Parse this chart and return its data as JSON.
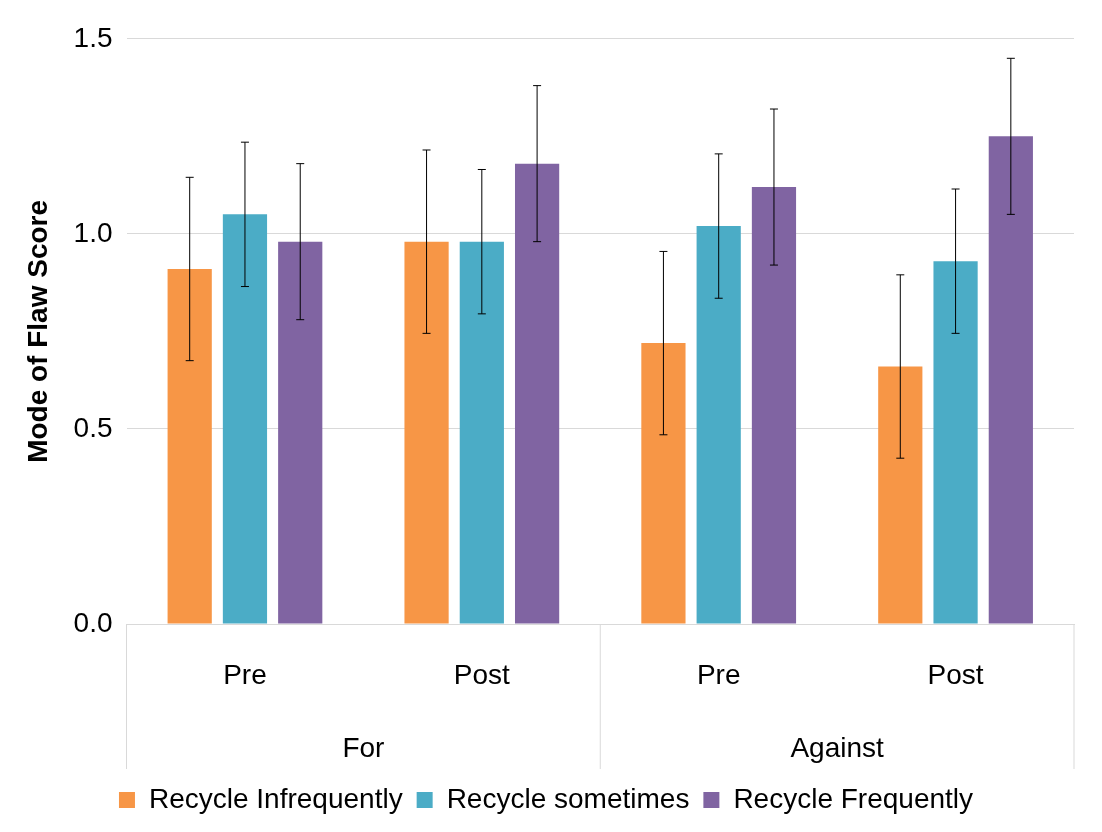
{
  "chart_data": {
    "type": "bar",
    "ylabel": "Mode of Flaw Score",
    "categories": [
      "Pre",
      "Post",
      "Pre",
      "Post"
    ],
    "annotations": [
      "For",
      "Against"
    ],
    "series": [
      {
        "name": "Recycle Infrequently",
        "color": "#f79646",
        "values": [
          0.91,
          0.98,
          0.72,
          0.66
        ],
        "errors": [
          0.235,
          0.235,
          0.235,
          0.235
        ]
      },
      {
        "name": "Recycle sometimes",
        "color": "#4bacc6",
        "values": [
          1.05,
          0.98,
          1.02,
          0.93
        ],
        "errors": [
          0.185,
          0.185,
          0.185,
          0.185
        ]
      },
      {
        "name": "Recycle Frequently",
        "color": "#8064a2",
        "values": [
          0.98,
          1.18,
          1.12,
          1.25
        ],
        "errors": [
          0.2,
          0.2,
          0.2,
          0.2
        ]
      }
    ],
    "ylim": [
      0,
      1.5
    ],
    "yticks": [
      {
        "value": 0,
        "label": "0.0"
      },
      {
        "value": 0.5,
        "label": "0.5"
      },
      {
        "value": 1,
        "label": "1.0"
      },
      {
        "value": 1.5,
        "label": "1.5"
      }
    ],
    "grid": "y",
    "legend": "bottom"
  }
}
